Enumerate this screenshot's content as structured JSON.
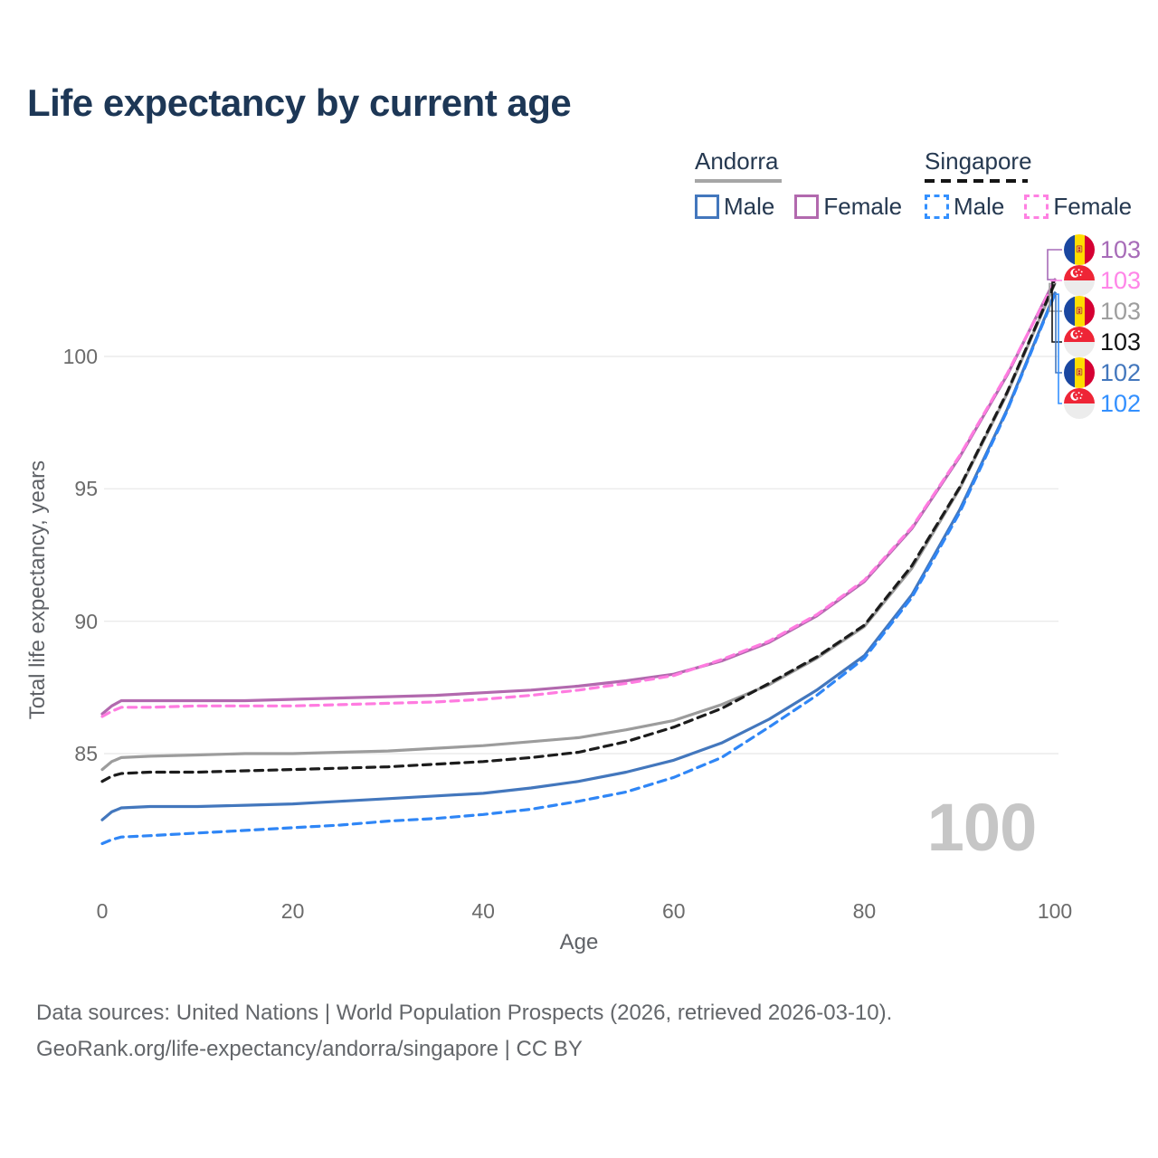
{
  "title": "Life expectancy by current age",
  "legend": {
    "groups": [
      {
        "country": "Andorra",
        "line_style": "solid",
        "line_color": "#a6a6a6",
        "items": [
          {
            "label": "Male",
            "color": "#4377bd",
            "dashed": false
          },
          {
            "label": "Female",
            "color": "#b269ae",
            "dashed": false
          }
        ]
      },
      {
        "country": "Singapore",
        "line_style": "dashed",
        "line_color": "#151515",
        "items": [
          {
            "label": "Male",
            "color": "#3390ff",
            "dashed": true
          },
          {
            "label": "Female",
            "color": "#ff80e2",
            "dashed": true
          }
        ]
      }
    ]
  },
  "chart_data": {
    "type": "line",
    "title": "Life expectancy by current age",
    "xlabel": "Age",
    "ylabel": "Total life expectancy, years",
    "xlim": [
      0,
      100
    ],
    "ylim": [
      81,
      103.5
    ],
    "x_ticks": [
      0,
      20,
      40,
      60,
      80,
      100
    ],
    "y_ticks": [
      85,
      90,
      95,
      100
    ],
    "grid": "horizontal-only",
    "legend_position": "top-right",
    "watermark": "100",
    "x": [
      0,
      1,
      2,
      5,
      10,
      15,
      20,
      25,
      30,
      35,
      40,
      45,
      50,
      55,
      60,
      65,
      70,
      75,
      80,
      85,
      90,
      95,
      100
    ],
    "series": [
      {
        "id": "andorra-female",
        "name": "Andorra Female",
        "country": "andorra",
        "color": "#b269ae",
        "dash": false,
        "end_label": "103",
        "label_color": "#a76bb8",
        "values": [
          86.5,
          86.8,
          87.0,
          87.0,
          87.0,
          87.0,
          87.05,
          87.1,
          87.15,
          87.2,
          87.3,
          87.4,
          87.55,
          87.75,
          88.0,
          88.5,
          89.2,
          90.2,
          91.5,
          93.5,
          96.2,
          99.3,
          102.9
        ]
      },
      {
        "id": "singapore-female",
        "name": "Singapore Female",
        "country": "singapore",
        "color": "#ff7be0",
        "dash": true,
        "end_label": "103",
        "label_color": "#ff85e8",
        "values": [
          86.4,
          86.6,
          86.75,
          86.75,
          86.8,
          86.8,
          86.8,
          86.85,
          86.9,
          86.95,
          87.05,
          87.2,
          87.4,
          87.65,
          87.95,
          88.55,
          89.25,
          90.25,
          91.55,
          93.55,
          96.25,
          99.35,
          102.85
        ]
      },
      {
        "id": "andorra-total",
        "name": "Andorra Both sexes",
        "country": "andorra",
        "color": "#9c9c9c",
        "dash": false,
        "end_label": "103",
        "label_color": "#9e9e9e",
        "values": [
          84.4,
          84.7,
          84.85,
          84.9,
          84.95,
          85.0,
          85.0,
          85.05,
          85.1,
          85.2,
          85.3,
          85.45,
          85.6,
          85.9,
          86.25,
          86.85,
          87.6,
          88.6,
          89.8,
          92.0,
          95.0,
          98.6,
          102.75
        ]
      },
      {
        "id": "singapore-total",
        "name": "Singapore Both sexes",
        "country": "singapore",
        "color": "#1c1c1c",
        "dash": true,
        "end_label": "103",
        "label_color": "#141414",
        "values": [
          83.95,
          84.15,
          84.25,
          84.3,
          84.3,
          84.35,
          84.4,
          84.45,
          84.5,
          84.6,
          84.7,
          84.85,
          85.05,
          85.45,
          86.0,
          86.7,
          87.65,
          88.65,
          89.85,
          92.1,
          95.05,
          98.65,
          102.8
        ]
      },
      {
        "id": "andorra-male",
        "name": "Andorra Male",
        "country": "andorra",
        "color": "#4377bd",
        "dash": false,
        "end_label": "102",
        "label_color": "#4377bd",
        "values": [
          82.5,
          82.8,
          82.95,
          83.0,
          83.0,
          83.05,
          83.1,
          83.2,
          83.3,
          83.4,
          83.5,
          83.7,
          83.95,
          84.3,
          84.75,
          85.4,
          86.3,
          87.4,
          88.7,
          91.0,
          94.2,
          98.0,
          102.4
        ]
      },
      {
        "id": "singapore-male",
        "name": "Singapore Male",
        "country": "singapore",
        "color": "#2f86f6",
        "dash": true,
        "end_label": "102",
        "label_color": "#3390ff",
        "values": [
          81.6,
          81.75,
          81.85,
          81.9,
          82.0,
          82.1,
          82.2,
          82.3,
          82.45,
          82.55,
          82.7,
          82.9,
          83.2,
          83.55,
          84.1,
          84.85,
          86.0,
          87.2,
          88.6,
          90.9,
          94.1,
          97.95,
          102.35
        ]
      }
    ]
  },
  "footer": {
    "line1": "Data sources: United Nations | World Population Prospects (2026, retrieved 2026-03-10).",
    "line2": "GeoRank.org/life-expectancy/andorra/singapore | CC BY"
  }
}
